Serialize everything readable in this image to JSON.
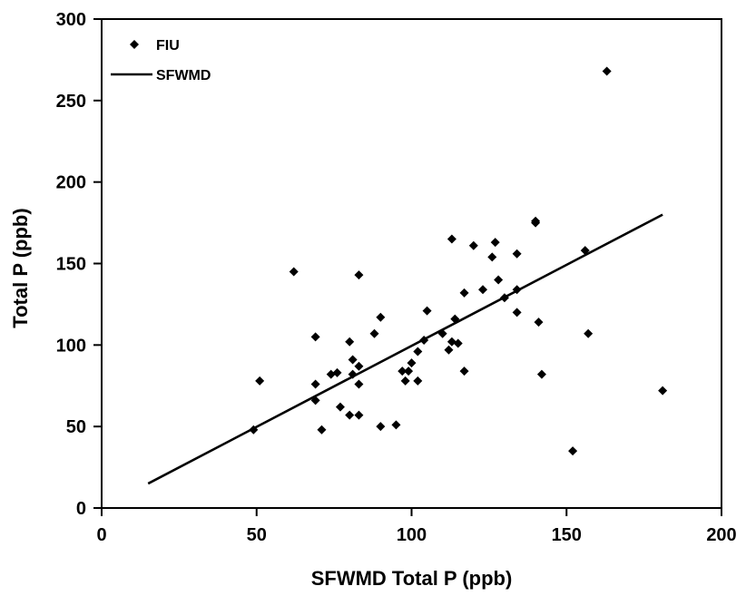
{
  "chart_data": {
    "type": "scatter",
    "title": "",
    "xlabel": "SFWMD Total P (ppb)",
    "ylabel": "Total P (ppb)",
    "xlim": [
      0,
      200
    ],
    "ylim": [
      0,
      300
    ],
    "xticks": [
      0,
      50,
      100,
      150,
      200
    ],
    "yticks": [
      0,
      50,
      100,
      150,
      200,
      250,
      300
    ],
    "grid": false,
    "legend_position": "top-left",
    "marker_color": "#000000",
    "line_color": "#000000",
    "series": [
      {
        "name": "FIU",
        "kind": "scatter",
        "points": [
          [
            49,
            48
          ],
          [
            51,
            78
          ],
          [
            62,
            145
          ],
          [
            69,
            105
          ],
          [
            69,
            76
          ],
          [
            69,
            66
          ],
          [
            71,
            48
          ],
          [
            74,
            82
          ],
          [
            76,
            83
          ],
          [
            77,
            62
          ],
          [
            80,
            57
          ],
          [
            80,
            102
          ],
          [
            81,
            91
          ],
          [
            81,
            82
          ],
          [
            83,
            57
          ],
          [
            83,
            143
          ],
          [
            83,
            76
          ],
          [
            83,
            87
          ],
          [
            88,
            107
          ],
          [
            90,
            117
          ],
          [
            90,
            50
          ],
          [
            95,
            51
          ],
          [
            97,
            84
          ],
          [
            98,
            78
          ],
          [
            99,
            84
          ],
          [
            100,
            89
          ],
          [
            102,
            78
          ],
          [
            102,
            96
          ],
          [
            104,
            103
          ],
          [
            105,
            121
          ],
          [
            110,
            107
          ],
          [
            112,
            97
          ],
          [
            113,
            165
          ],
          [
            113,
            102
          ],
          [
            114,
            116
          ],
          [
            115,
            101
          ],
          [
            117,
            84
          ],
          [
            117,
            132
          ],
          [
            120,
            161
          ],
          [
            123,
            134
          ],
          [
            126,
            154
          ],
          [
            127,
            163
          ],
          [
            128,
            140
          ],
          [
            130,
            129
          ],
          [
            134,
            134
          ],
          [
            134,
            156
          ],
          [
            134,
            120
          ],
          [
            140,
            175
          ],
          [
            140,
            176
          ],
          [
            141,
            114
          ],
          [
            142,
            82
          ],
          [
            152,
            35
          ],
          [
            156,
            158
          ],
          [
            157,
            107
          ],
          [
            163,
            268
          ],
          [
            181,
            72
          ]
        ]
      },
      {
        "name": "SFWMD",
        "kind": "line",
        "points": [
          [
            15,
            15
          ],
          [
            181,
            180
          ]
        ]
      }
    ]
  }
}
